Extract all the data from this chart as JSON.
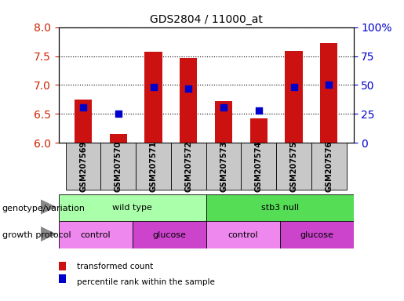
{
  "title": "GDS2804 / 11000_at",
  "samples": [
    "GSM207569",
    "GSM207570",
    "GSM207571",
    "GSM207572",
    "GSM207573",
    "GSM207574",
    "GSM207575",
    "GSM207576"
  ],
  "transformed_count": [
    6.75,
    6.15,
    7.57,
    7.46,
    6.72,
    6.42,
    7.59,
    7.72
  ],
  "percentile_rank": [
    31,
    25,
    48,
    47,
    31,
    28,
    48,
    50
  ],
  "ylim_left": [
    6.0,
    8.0
  ],
  "ylim_right": [
    0,
    100
  ],
  "yticks_left": [
    6.0,
    6.5,
    7.0,
    7.5,
    8.0
  ],
  "yticks_right": [
    0,
    25,
    50,
    75,
    100
  ],
  "bar_color": "#cc1111",
  "dot_color": "#0000cc",
  "bar_bottom": 6.0,
  "genotype_groups": [
    {
      "label": "wild type",
      "start": 0,
      "end": 4,
      "color": "#aaffaa"
    },
    {
      "label": "stb3 null",
      "start": 4,
      "end": 8,
      "color": "#55dd55"
    }
  ],
  "protocol_groups": [
    {
      "label": "control",
      "start": 0,
      "end": 2,
      "color": "#ee88ee"
    },
    {
      "label": "glucose",
      "start": 2,
      "end": 4,
      "color": "#cc44cc"
    },
    {
      "label": "control",
      "start": 4,
      "end": 6,
      "color": "#ee88ee"
    },
    {
      "label": "glucose",
      "start": 6,
      "end": 8,
      "color": "#cc44cc"
    }
  ],
  "genotype_label": "genotype/variation",
  "protocol_label": "growth protocol",
  "legend_bar_label": "transformed count",
  "legend_dot_label": "percentile rank within the sample",
  "tick_label_color_left": "#cc2200",
  "tick_label_color_right": "#0000cc",
  "grid_color": "#000000",
  "sample_box_color": "#c8c8c8",
  "arrow_color": "#888888"
}
